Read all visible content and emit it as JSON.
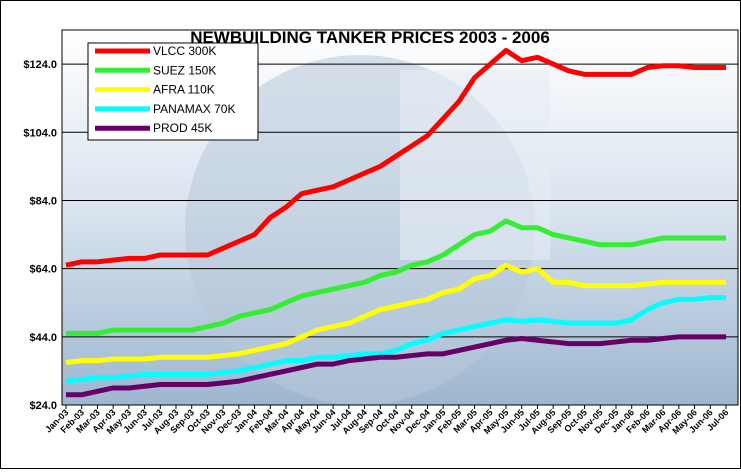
{
  "chart_data": {
    "type": "line",
    "title": "NEWBUILDING TANKER PRICES 2003 - 2006",
    "categories": [
      "Jan-03",
      "Feb-03",
      "Mar-03",
      "Apr-03",
      "May-03",
      "Jun-03",
      "Jul-03",
      "Aug-03",
      "Sep-03",
      "Oct-03",
      "Nov-03",
      "Dec-03",
      "Jan-04",
      "Feb-04",
      "Mar-04",
      "Apr-04",
      "May-04",
      "Jun-04",
      "Jul-04",
      "Aug-04",
      "Sep-04",
      "Oct-04",
      "Nov-04",
      "Dec-04",
      "Jan-05",
      "Feb-05",
      "Mar-05",
      "Apr-05",
      "May-05",
      "Jun-05",
      "Jul-05",
      "Aug-05",
      "Sep-05",
      "Oct-05",
      "Nov-05",
      "Dec-05",
      "Jan-06",
      "Feb-06",
      "Mar-06",
      "Apr-06",
      "May-06",
      "Jun-06",
      "Jul-06"
    ],
    "series": [
      {
        "name": "VLCC 300K",
        "color": "#ff0000",
        "values": [
          65,
          66,
          66,
          66.5,
          67,
          67,
          68,
          68,
          68,
          68,
          70,
          72,
          74,
          79,
          82,
          86,
          87,
          88,
          90,
          92,
          94,
          97,
          100,
          103,
          108,
          113,
          120,
          124,
          128,
          125,
          126,
          124,
          122,
          121,
          121,
          121,
          121,
          123,
          123.5,
          123.5,
          123,
          123,
          123
        ]
      },
      {
        "name": "SUEZ 150K",
        "color": "#33ee33",
        "values": [
          45,
          45,
          45,
          46,
          46,
          46,
          46,
          46,
          46,
          47,
          48,
          50,
          51,
          52,
          54,
          56,
          57,
          58,
          59,
          60,
          62,
          63,
          65,
          66,
          68,
          71,
          74,
          75,
          78,
          76,
          76,
          74,
          73,
          72,
          71,
          71,
          71,
          72,
          73,
          73,
          73,
          73,
          73
        ]
      },
      {
        "name": "AFRA 110K",
        "color": "#ffff00",
        "values": [
          36.5,
          37,
          37,
          37.5,
          37.5,
          37.5,
          38,
          38,
          38,
          38,
          38.5,
          39,
          40,
          41,
          42,
          44,
          46,
          47,
          48,
          50,
          52,
          53,
          54,
          55,
          57,
          58,
          61,
          62,
          65,
          63,
          64,
          60,
          60,
          59,
          59,
          59,
          59,
          59.5,
          60,
          60,
          60,
          60,
          60
        ]
      },
      {
        "name": "PANAMAX 70K",
        "color": "#00ffff",
        "values": [
          31,
          31.5,
          32,
          32,
          32.5,
          33,
          33,
          33,
          33,
          33,
          33.5,
          34,
          35,
          36,
          37,
          37,
          38,
          38,
          38.5,
          39,
          39,
          40,
          42,
          43,
          45,
          46,
          47,
          48,
          49,
          48.5,
          49,
          48.5,
          48,
          48,
          48,
          48,
          49,
          52,
          54,
          55,
          55,
          55.5,
          55.5
        ]
      },
      {
        "name": "PROD 45K",
        "color": "#660066",
        "values": [
          27,
          27,
          28,
          29,
          29,
          29.5,
          30,
          30,
          30,
          30,
          30.5,
          31,
          32,
          33,
          34,
          35,
          36,
          36,
          37,
          37.5,
          38,
          38,
          38.5,
          39,
          39,
          40,
          41,
          42,
          43,
          43.5,
          43,
          42.5,
          42,
          42,
          42,
          42.5,
          43,
          43,
          43.5,
          44,
          44,
          44,
          44
        ]
      }
    ],
    "ylim": [
      24,
      134
    ],
    "yticks": [
      {
        "value": 24,
        "label": "$24.0"
      },
      {
        "value": 44,
        "label": "$44.0"
      },
      {
        "value": 64,
        "label": "$64.0"
      },
      {
        "value": 84,
        "label": "$84.0"
      },
      {
        "value": 104,
        "label": "$104.0"
      },
      {
        "value": 124,
        "label": "$124.0"
      }
    ],
    "grid": true
  }
}
